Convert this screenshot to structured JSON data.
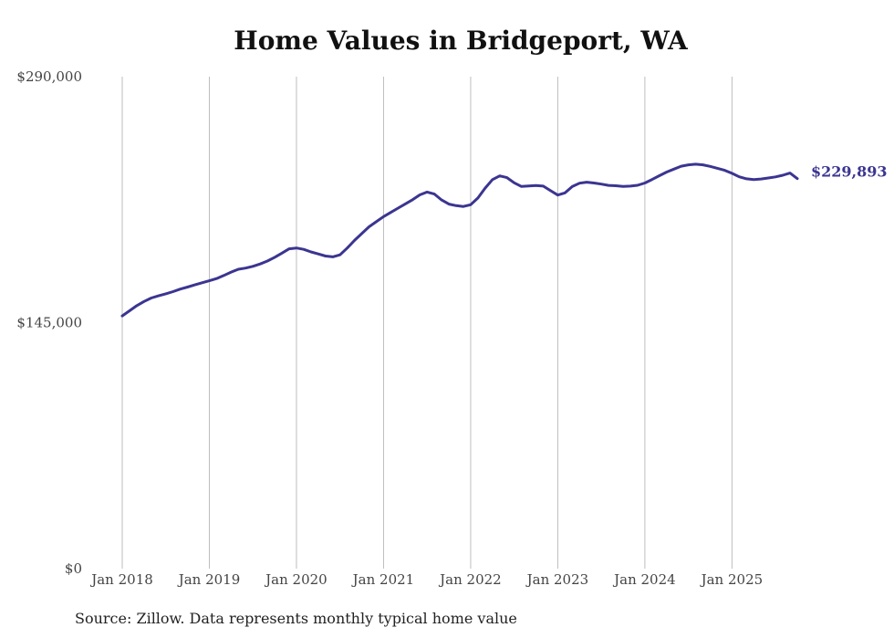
{
  "title": "Home Values in Bridgeport, WA",
  "source_note": "Source: Zillow. Data represents monthly typical home value",
  "chart_data": {
    "type": "line",
    "title": "Home Values in Bridgeport, WA",
    "xlabel": "",
    "ylabel": "",
    "ylim": [
      0,
      290000
    ],
    "y_ticks": [
      0,
      145000,
      290000
    ],
    "y_tick_labels": [
      "$0",
      "$145,000",
      "$290,000"
    ],
    "x_tick_labels": [
      "Jan 2018",
      "Jan 2019",
      "Jan 2020",
      "Jan 2021",
      "Jan 2022",
      "Jan 2023",
      "Jan 2024",
      "Jan 2025"
    ],
    "xlim": [
      "2018-01",
      "2025-10"
    ],
    "grid": "vertical",
    "line_color": "#3b3591",
    "end_label": "$229,893",
    "series": [
      {
        "x": [
          "2018-01",
          "2018-02",
          "2018-03",
          "2018-04",
          "2018-05",
          "2018-06",
          "2018-07",
          "2018-08",
          "2018-09",
          "2018-10",
          "2018-11",
          "2018-12",
          "2019-01",
          "2019-02",
          "2019-03",
          "2019-04",
          "2019-05",
          "2019-06",
          "2019-07",
          "2019-08",
          "2019-09",
          "2019-10",
          "2019-11",
          "2019-12",
          "2020-01",
          "2020-02",
          "2020-03",
          "2020-04",
          "2020-05",
          "2020-06",
          "2020-07",
          "2020-08",
          "2020-09",
          "2020-10",
          "2020-11",
          "2020-12",
          "2021-01",
          "2021-02",
          "2021-03",
          "2021-04",
          "2021-05",
          "2021-06",
          "2021-07",
          "2021-08",
          "2021-09",
          "2021-10",
          "2021-11",
          "2021-12",
          "2022-01",
          "2022-02",
          "2022-03",
          "2022-04",
          "2022-05",
          "2022-06",
          "2022-07",
          "2022-08",
          "2022-09",
          "2022-10",
          "2022-11",
          "2022-12",
          "2023-01",
          "2023-02",
          "2023-03",
          "2023-04",
          "2023-05",
          "2023-06",
          "2023-07",
          "2023-08",
          "2023-09",
          "2023-10",
          "2023-11",
          "2023-12",
          "2024-01",
          "2024-02",
          "2024-03",
          "2024-04",
          "2024-05",
          "2024-06",
          "2024-07",
          "2024-08",
          "2024-09",
          "2024-10",
          "2024-11",
          "2024-12",
          "2025-01",
          "2025-02",
          "2025-03",
          "2025-04",
          "2025-05",
          "2025-06",
          "2025-07",
          "2025-08",
          "2025-09",
          "2025-10"
        ],
        "values": [
          149000,
          152000,
          155000,
          157500,
          159500,
          160800,
          162000,
          163300,
          164800,
          166000,
          167300,
          168500,
          169700,
          171000,
          172800,
          174800,
          176500,
          177200,
          178200,
          179600,
          181300,
          183500,
          186000,
          188500,
          189000,
          188200,
          186700,
          185500,
          184300,
          183800,
          185000,
          189000,
          193500,
          197500,
          201500,
          204500,
          207500,
          210000,
          212500,
          215000,
          217500,
          220300,
          222000,
          220800,
          217300,
          214900,
          214000,
          213500,
          214500,
          218500,
          224300,
          229300,
          231500,
          230500,
          227400,
          225300,
          225600,
          225800,
          225500,
          222800,
          220200,
          221500,
          225200,
          227200,
          227800,
          227300,
          226700,
          225900,
          225700,
          225300,
          225500,
          226000,
          227300,
          229400,
          231600,
          233800,
          235500,
          237200,
          238000,
          238400,
          238000,
          237100,
          236000,
          234800,
          233000,
          231000,
          229800,
          229300,
          229700,
          230300,
          230900,
          231900,
          233200,
          229893
        ]
      }
    ]
  }
}
